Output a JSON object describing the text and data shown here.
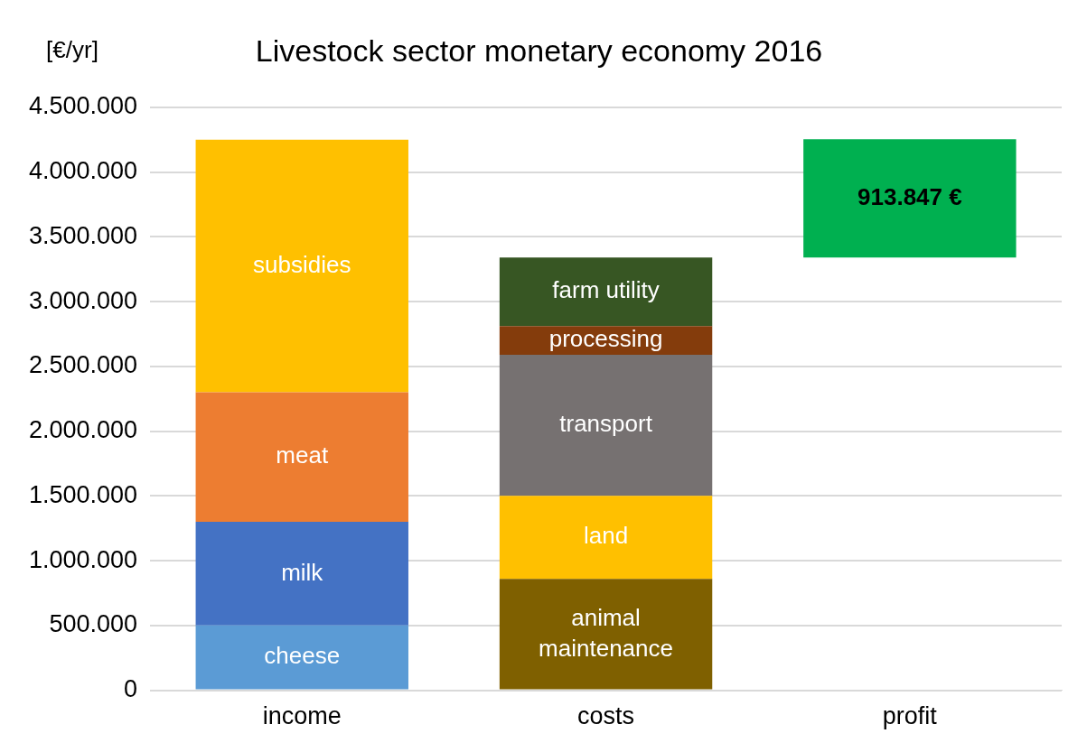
{
  "chart_data": {
    "type": "bar",
    "title": "Livestock sector monetary economy 2016",
    "ylabel": "[€/yr]",
    "stacked": true,
    "categories": [
      "income",
      "costs",
      "profit"
    ],
    "series": [
      {
        "name": "cheese",
        "color": "#5b9bd5",
        "values": [
          500000,
          null,
          null
        ]
      },
      {
        "name": "milk",
        "color": "#4472c4",
        "values": [
          800000,
          null,
          null
        ]
      },
      {
        "name": "meat",
        "color": "#ed7d31",
        "values": [
          1000000,
          null,
          null
        ]
      },
      {
        "name": "subsidies",
        "color": "#ffc000",
        "values": [
          1950000,
          null,
          null
        ]
      },
      {
        "name": "animal maintenance",
        "color": "#7f6000",
        "values": [
          null,
          860000,
          null
        ]
      },
      {
        "name": "land",
        "color": "#ffc000",
        "values": [
          null,
          640000,
          null
        ]
      },
      {
        "name": "transport",
        "color": "#767171",
        "values": [
          null,
          1090000,
          null
        ]
      },
      {
        "name": "processing",
        "color": "#843c0c",
        "values": [
          null,
          220000,
          null
        ]
      },
      {
        "name": "farm utility",
        "color": "#375623",
        "values": [
          null,
          530000,
          null
        ]
      },
      {
        "color": "#00b050",
        "values": [
          null,
          null,
          913847
        ],
        "base": [
          null,
          null,
          3340000
        ],
        "value_labels": [
          null,
          null,
          "913.847 €"
        ]
      }
    ],
    "ylim": [
      0,
      4500000
    ],
    "yticks": [
      {
        "value": 0,
        "label": "0"
      },
      {
        "value": 500000,
        "label": "500.000"
      },
      {
        "value": 1000000,
        "label": "1.000.000"
      },
      {
        "value": 1500000,
        "label": "1.500.000"
      },
      {
        "value": 2000000,
        "label": "2.000.000"
      },
      {
        "value": 2500000,
        "label": "2.500.000"
      },
      {
        "value": 3000000,
        "label": "3.000.000"
      },
      {
        "value": 3500000,
        "label": "3.500.000"
      },
      {
        "value": 4000000,
        "label": "4.000.000"
      },
      {
        "value": 4500000,
        "label": "4.500.000"
      }
    ],
    "grid": "y",
    "legend": false
  }
}
